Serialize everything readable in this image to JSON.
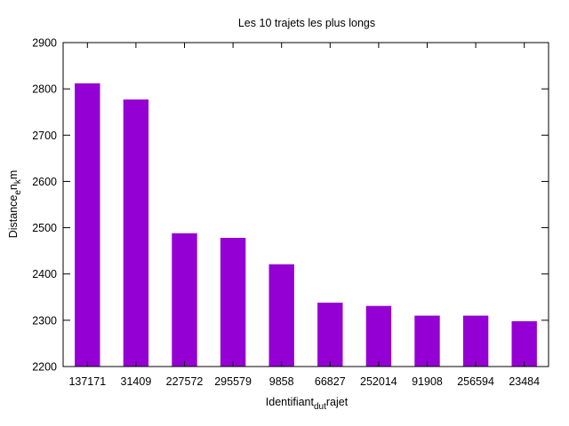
{
  "chart_data": {
    "type": "bar",
    "title": "Les 10 trajets les plus longs",
    "xlabel": {
      "base": "Identifiant",
      "sub1": "du",
      "sub2": "t",
      "rest": "rajet"
    },
    "ylabel": {
      "base": "Distance",
      "sub1": "e",
      "mid": "n",
      "sub2": "k",
      "rest": "m"
    },
    "categories": [
      "137171",
      "31409",
      "227572",
      "295579",
      "9858",
      "66827",
      "252014",
      "91908",
      "256594",
      "23484"
    ],
    "values": [
      2812,
      2777,
      2488,
      2478,
      2421,
      2338,
      2331,
      2310,
      2310,
      2298
    ],
    "ylim": [
      2200,
      2900
    ],
    "yticks": [
      "2200",
      "2300",
      "2400",
      "2500",
      "2600",
      "2700",
      "2800",
      "2900"
    ],
    "bar_color": "#9400d3",
    "grid": false,
    "legend": "none"
  }
}
